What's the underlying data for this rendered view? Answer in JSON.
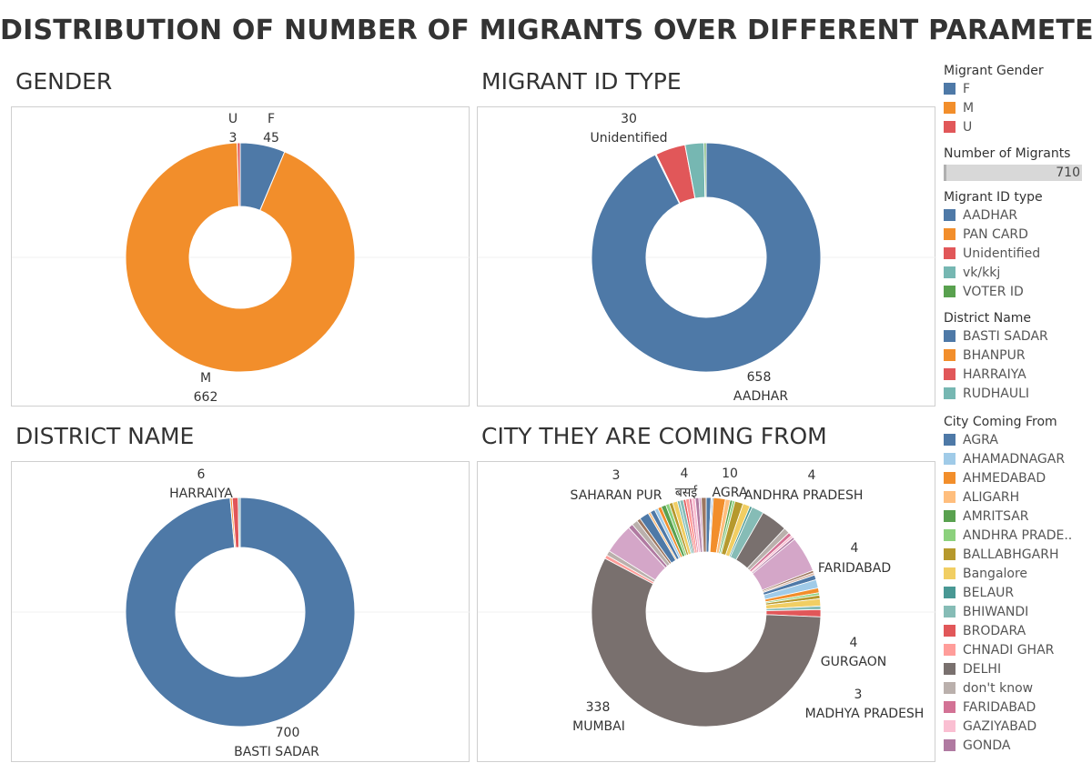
{
  "page_title": "DISTRIBUTION OF NUMBER OF MIGRANTS OVER DIFFERENT PARAMETERS",
  "chart_data": [
    {
      "type": "pie",
      "title": "GENDER",
      "donut": true,
      "categories": [
        "F",
        "M",
        "U"
      ],
      "values": [
        45,
        662,
        3
      ],
      "colors": [
        "#4e79a7",
        "#f28e2b",
        "#e15759"
      ],
      "data_labels": [
        {
          "category": "U",
          "value": "3"
        },
        {
          "category": "F",
          "value": "45"
        },
        {
          "category": "M",
          "value": "662"
        }
      ]
    },
    {
      "type": "pie",
      "title": "MIGRANT ID TYPE",
      "donut": true,
      "categories": [
        "AADHAR",
        "PAN CARD",
        "Unidentified",
        "vk/kkj",
        "VOTER ID"
      ],
      "values": [
        658,
        1,
        30,
        19,
        2
      ],
      "colors": [
        "#4e79a7",
        "#f28e2b",
        "#e15759",
        "#76b7b2",
        "#59a14f"
      ],
      "data_labels": [
        {
          "category": "Unidentified",
          "value": "30"
        },
        {
          "category": "AADHAR",
          "value": "658"
        }
      ]
    },
    {
      "type": "pie",
      "title": "DISTRICT NAME",
      "donut": true,
      "categories": [
        "BASTI SADAR",
        "BHANPUR",
        "HARRAIYA",
        "RUDHAULI"
      ],
      "values": [
        700,
        2,
        6,
        2
      ],
      "colors": [
        "#4e79a7",
        "#f28e2b",
        "#e15759",
        "#76b7b2"
      ],
      "data_labels": [
        {
          "category": "HARRAIYA",
          "value": "6"
        },
        {
          "category": "BASTI SADAR",
          "value": "700"
        }
      ]
    },
    {
      "type": "pie",
      "title": "CITY THEY ARE COMING FROM",
      "donut": true,
      "slices": [
        {
          "v": 4,
          "c": "#4e79a7"
        },
        {
          "v": 1,
          "c": "#a0cbe8"
        },
        {
          "v": 1,
          "c": "#4e79a7"
        },
        {
          "v": 10,
          "c": "#f28e2b"
        },
        {
          "v": 4,
          "c": "#ffbe7d"
        },
        {
          "v": 2,
          "c": "#59a14f"
        },
        {
          "v": 2,
          "c": "#8cd17d"
        },
        {
          "v": 7,
          "c": "#b6992d"
        },
        {
          "v": 6,
          "c": "#f1ce63"
        },
        {
          "v": 2,
          "c": "#499894"
        },
        {
          "v": 10,
          "c": "#86bcb6"
        },
        {
          "v": 22,
          "c": "#79706e"
        },
        {
          "v": 5,
          "c": "#bab0ac"
        },
        {
          "v": 3,
          "c": "#d37295"
        },
        {
          "v": 2,
          "c": "#fabfd2"
        },
        {
          "v": 2,
          "c": "#b07aa1"
        },
        {
          "v": 30,
          "c": "#d4a6c8"
        },
        {
          "v": 2,
          "c": "#9d7660"
        },
        {
          "v": 2,
          "c": "#d7b5a6"
        },
        {
          "v": 4,
          "c": "#4e79a7"
        },
        {
          "v": 7,
          "c": "#a0cbe8"
        },
        {
          "v": 4,
          "c": "#f28e2b"
        },
        {
          "v": 2,
          "c": "#8cd17d"
        },
        {
          "v": 3,
          "c": "#b6992d"
        },
        {
          "v": 6,
          "c": "#f1ce63"
        },
        {
          "v": 3,
          "c": "#86bcb6"
        },
        {
          "v": 6,
          "c": "#e15759"
        },
        {
          "v": 338,
          "c": "#79706e"
        },
        {
          "v": 3,
          "c": "#ff9d9a"
        },
        {
          "v": 4,
          "c": "#bab0ac"
        },
        {
          "v": 25,
          "c": "#d4a6c8"
        },
        {
          "v": 4,
          "c": "#b07aa1"
        },
        {
          "v": 5,
          "c": "#bab0ac"
        },
        {
          "v": 3,
          "c": "#9d7660"
        },
        {
          "v": 8,
          "c": "#4e79a7"
        },
        {
          "v": 2,
          "c": "#ffbe7d"
        },
        {
          "v": 4,
          "c": "#4e79a7"
        },
        {
          "v": 3,
          "c": "#a0cbe8"
        },
        {
          "v": 3,
          "c": "#f28e2b"
        },
        {
          "v": 4,
          "c": "#59a14f"
        },
        {
          "v": 3,
          "c": "#8cd17d"
        },
        {
          "v": 3,
          "c": "#b6992d"
        },
        {
          "v": 4,
          "c": "#f1ce63"
        },
        {
          "v": 2,
          "c": "#76b7b2"
        },
        {
          "v": 3,
          "c": "#86bcb6"
        },
        {
          "v": 2,
          "c": "#e15759"
        },
        {
          "v": 3,
          "c": "#ff9d9a"
        },
        {
          "v": 2,
          "c": "#d37295"
        },
        {
          "v": 3,
          "c": "#fabfd2"
        },
        {
          "v": 3,
          "c": "#b07aa1"
        },
        {
          "v": 2,
          "c": "#d4a6c8"
        },
        {
          "v": 4,
          "c": "#9d7660"
        }
      ],
      "data_labels": [
        {
          "category": "SAHARAN PUR",
          "value": "3"
        },
        {
          "category": "बसई",
          "value": "4"
        },
        {
          "category": "AGRA",
          "value": "10"
        },
        {
          "category": "ANDHRA PRADESH",
          "value": "4"
        },
        {
          "category": "FARIDABAD",
          "value": "4"
        },
        {
          "category": "GURGAON",
          "value": "4"
        },
        {
          "category": "MADHYA PRADESH",
          "value": "3"
        },
        {
          "category": "MUMBAI",
          "value": "338"
        }
      ]
    }
  ],
  "legend": {
    "gender": {
      "title": "Migrant Gender",
      "items": [
        {
          "label": "F",
          "color": "#4e79a7"
        },
        {
          "label": "M",
          "color": "#f28e2b"
        },
        {
          "label": "U",
          "color": "#e15759"
        }
      ]
    },
    "size": {
      "title": "Number of Migrants",
      "value": "710"
    },
    "idtype": {
      "title": "Migrant ID type",
      "items": [
        {
          "label": "AADHAR",
          "color": "#4e79a7"
        },
        {
          "label": "PAN CARD",
          "color": "#f28e2b"
        },
        {
          "label": "Unidentified",
          "color": "#e15759"
        },
        {
          "label": "vk/kkj",
          "color": "#76b7b2"
        },
        {
          "label": "VOTER ID",
          "color": "#59a14f"
        }
      ]
    },
    "district": {
      "title": "District Name",
      "items": [
        {
          "label": "BASTI SADAR",
          "color": "#4e79a7"
        },
        {
          "label": "BHANPUR",
          "color": "#f28e2b"
        },
        {
          "label": "HARRAIYA",
          "color": "#e15759"
        },
        {
          "label": "RUDHAULI",
          "color": "#76b7b2"
        }
      ]
    },
    "city": {
      "title": "City Coming From",
      "items": [
        {
          "label": "AGRA",
          "color": "#4e79a7"
        },
        {
          "label": "AHAMADNAGAR",
          "color": "#a0cbe8"
        },
        {
          "label": "AHMEDABAD",
          "color": "#f28e2b"
        },
        {
          "label": "ALIGARH",
          "color": "#ffbe7d"
        },
        {
          "label": "AMRITSAR",
          "color": "#59a14f"
        },
        {
          "label": "ANDHRA PRADE..",
          "color": "#8cd17d"
        },
        {
          "label": "BALLABHGARH",
          "color": "#b6992d"
        },
        {
          "label": "Bangalore",
          "color": "#f1ce63"
        },
        {
          "label": "BELAUR",
          "color": "#499894"
        },
        {
          "label": "BHIWANDI",
          "color": "#86bcb6"
        },
        {
          "label": "BRODARA",
          "color": "#e15759"
        },
        {
          "label": "CHNADI GHAR",
          "color": "#ff9d9a"
        },
        {
          "label": "DELHI",
          "color": "#79706e"
        },
        {
          "label": "don't know",
          "color": "#bab0ac"
        },
        {
          "label": "FARIDABAD",
          "color": "#d37295"
        },
        {
          "label": "GAZIYABAD",
          "color": "#fabfd2"
        },
        {
          "label": "GONDA",
          "color": "#b07aa1"
        }
      ]
    }
  }
}
